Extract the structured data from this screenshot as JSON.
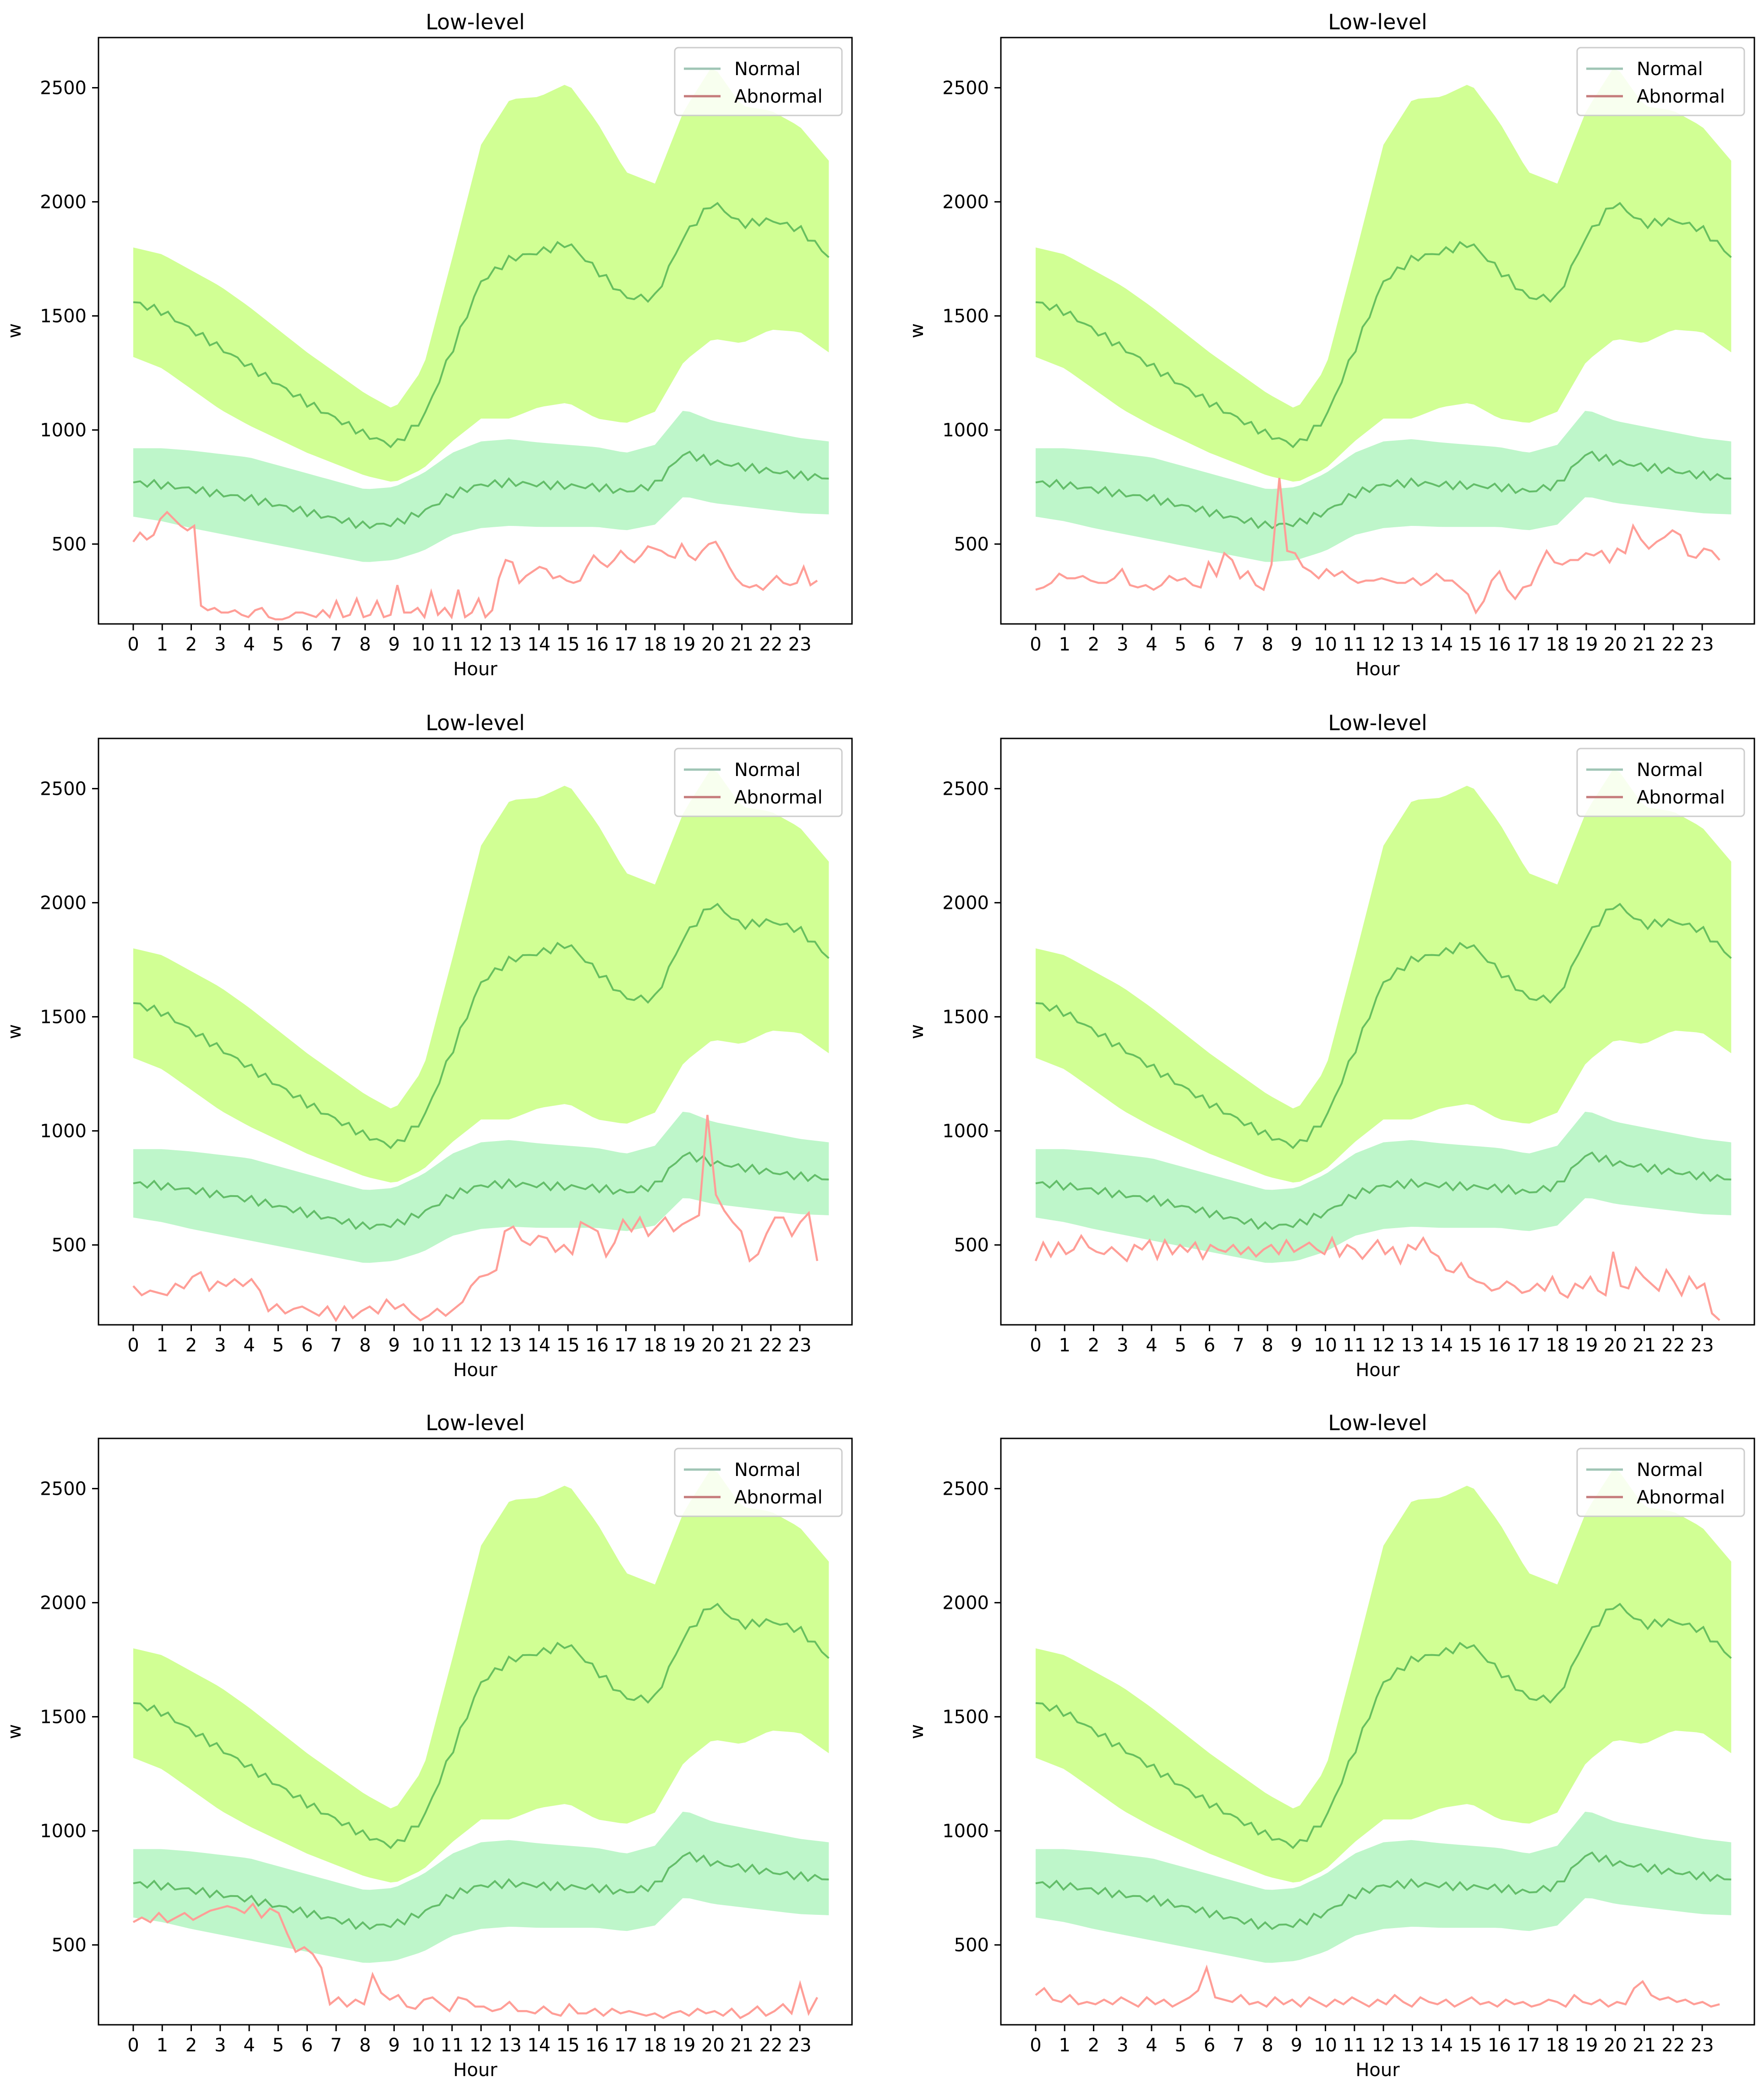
{
  "figure": {
    "panel_count": 6,
    "colors": {
      "upper_band": "#ccff88",
      "upper_mean": "#4caf50",
      "lower_band": "#b7f5c4",
      "lower_mean": "#4caf50",
      "abnormal": "#ff9e97",
      "legend_normal": "#9fc5b5",
      "legend_abnormal": "#c57b7b"
    }
  },
  "chart_data": [
    {
      "type": "line",
      "title": "Low-level",
      "xlabel": "Hour",
      "ylabel": "w",
      "legend": [
        "Normal",
        "Abnormal"
      ],
      "legend_position": "top-right",
      "ylim": [
        150,
        2720
      ],
      "xlim": [
        -1.2,
        24.8
      ],
      "xticks": [
        "0",
        "1",
        "2",
        "3",
        "4",
        "5",
        "6",
        "7",
        "8",
        "9",
        "10",
        "11",
        "12",
        "13",
        "14",
        "15",
        "16",
        "17",
        "18",
        "19",
        "20",
        "21",
        "22",
        "23"
      ],
      "yticks": [
        "500",
        "1000",
        "1500",
        "2000",
        "2500"
      ],
      "abnormal_y": [
        510,
        550,
        520,
        540,
        610,
        640,
        610,
        580,
        560,
        580,
        230,
        210,
        220,
        200,
        200,
        210,
        190,
        180,
        210,
        220,
        180,
        170,
        170,
        180,
        200,
        200,
        190,
        180,
        210,
        180,
        250,
        180,
        190,
        260,
        180,
        190,
        250,
        180,
        190,
        320,
        200,
        200,
        220,
        180,
        290,
        190,
        220,
        180,
        300,
        180,
        200,
        260,
        180,
        210,
        350,
        430,
        420,
        330,
        360,
        380,
        400,
        390,
        350,
        360,
        340,
        330,
        340,
        400,
        450,
        420,
        400,
        430,
        470,
        440,
        420,
        450,
        490,
        480,
        470,
        450,
        440,
        500,
        450,
        430,
        470,
        500,
        510,
        460,
        400,
        350,
        320,
        310,
        320,
        300,
        330,
        360,
        330,
        320,
        330,
        400,
        320,
        340
      ]
    },
    {
      "type": "line",
      "title": "Low-level",
      "xlabel": "Hour",
      "ylabel": "w",
      "legend": [
        "Normal",
        "Abnormal"
      ],
      "legend_position": "top-right",
      "ylim": [
        150,
        2720
      ],
      "xlim": [
        -1.2,
        24.8
      ],
      "xticks": [
        "0",
        "1",
        "2",
        "3",
        "4",
        "5",
        "6",
        "7",
        "8",
        "9",
        "10",
        "11",
        "12",
        "13",
        "14",
        "15",
        "16",
        "17",
        "18",
        "19",
        "20",
        "21",
        "22",
        "23"
      ],
      "yticks": [
        "500",
        "1000",
        "1500",
        "2000",
        "2500"
      ],
      "abnormal_y": [
        300,
        310,
        330,
        370,
        350,
        350,
        360,
        340,
        330,
        330,
        350,
        390,
        320,
        310,
        320,
        300,
        320,
        360,
        340,
        350,
        320,
        310,
        420,
        360,
        460,
        430,
        350,
        380,
        320,
        300,
        410,
        790,
        470,
        460,
        400,
        380,
        350,
        390,
        360,
        380,
        350,
        330,
        340,
        340,
        350,
        340,
        330,
        330,
        350,
        320,
        340,
        370,
        340,
        340,
        310,
        280,
        200,
        250,
        340,
        380,
        300,
        260,
        310,
        320,
        400,
        470,
        420,
        410,
        430,
        430,
        460,
        450,
        470,
        420,
        480,
        460,
        580,
        520,
        480,
        510,
        530,
        560,
        540,
        450,
        440,
        480,
        470,
        430
      ]
    },
    {
      "type": "line",
      "title": "Low-level",
      "xlabel": "Hour",
      "ylabel": "w",
      "legend": [
        "Normal",
        "Abnormal"
      ],
      "legend_position": "top-right",
      "ylim": [
        150,
        2720
      ],
      "xlim": [
        -1.2,
        24.8
      ],
      "xticks": [
        "0",
        "1",
        "2",
        "3",
        "4",
        "5",
        "6",
        "7",
        "8",
        "9",
        "10",
        "11",
        "12",
        "13",
        "14",
        "15",
        "16",
        "17",
        "18",
        "19",
        "20",
        "21",
        "22",
        "23"
      ],
      "yticks": [
        "500",
        "1000",
        "1500",
        "2000",
        "2500"
      ],
      "abnormal_y": [
        320,
        280,
        300,
        290,
        280,
        330,
        310,
        360,
        380,
        300,
        340,
        320,
        350,
        320,
        350,
        300,
        210,
        240,
        200,
        220,
        230,
        210,
        190,
        230,
        170,
        230,
        180,
        210,
        230,
        200,
        260,
        220,
        240,
        200,
        170,
        190,
        220,
        190,
        220,
        250,
        320,
        360,
        370,
        390,
        560,
        580,
        520,
        500,
        540,
        530,
        470,
        500,
        460,
        600,
        580,
        560,
        450,
        510,
        610,
        560,
        620,
        540,
        580,
        620,
        560,
        590,
        610,
        630,
        1070,
        720,
        650,
        600,
        560,
        430,
        460,
        550,
        620,
        620,
        540,
        600,
        640,
        430
      ]
    },
    {
      "type": "line",
      "title": "Low-level",
      "xlabel": "Hour",
      "ylabel": "w",
      "legend": [
        "Normal",
        "Abnormal"
      ],
      "legend_position": "top-right",
      "ylim": [
        150,
        2720
      ],
      "xlim": [
        -1.2,
        24.8
      ],
      "xticks": [
        "0",
        "1",
        "2",
        "3",
        "4",
        "5",
        "6",
        "7",
        "8",
        "9",
        "10",
        "11",
        "12",
        "13",
        "14",
        "15",
        "16",
        "17",
        "18",
        "19",
        "20",
        "21",
        "22",
        "23"
      ],
      "yticks": [
        "500",
        "1000",
        "1500",
        "2000",
        "2500"
      ],
      "abnormal_y": [
        430,
        510,
        450,
        510,
        460,
        480,
        540,
        490,
        470,
        460,
        490,
        460,
        430,
        500,
        480,
        520,
        440,
        520,
        460,
        500,
        470,
        510,
        440,
        500,
        480,
        470,
        500,
        460,
        490,
        450,
        480,
        500,
        460,
        520,
        470,
        490,
        510,
        480,
        460,
        530,
        450,
        500,
        480,
        440,
        480,
        520,
        460,
        490,
        420,
        500,
        480,
        530,
        470,
        450,
        390,
        380,
        420,
        360,
        340,
        330,
        300,
        310,
        340,
        320,
        290,
        300,
        330,
        300,
        360,
        290,
        270,
        330,
        310,
        360,
        300,
        280,
        470,
        320,
        310,
        400,
        360,
        330,
        300,
        390,
        340,
        280,
        360,
        310,
        330,
        200,
        170
      ]
    },
    {
      "type": "line",
      "title": "Low-level",
      "xlabel": "Hour",
      "ylabel": "w",
      "legend": [
        "Normal",
        "Abnormal"
      ],
      "legend_position": "top-right",
      "ylim": [
        150,
        2720
      ],
      "xlim": [
        -1.2,
        24.8
      ],
      "xticks": [
        "0",
        "1",
        "2",
        "3",
        "4",
        "5",
        "6",
        "7",
        "8",
        "9",
        "10",
        "11",
        "12",
        "13",
        "14",
        "15",
        "16",
        "17",
        "18",
        "19",
        "20",
        "21",
        "22",
        "23"
      ],
      "yticks": [
        "500",
        "1000",
        "1500",
        "2000",
        "2500"
      ],
      "abnormal_y": [
        600,
        620,
        600,
        640,
        600,
        620,
        640,
        610,
        630,
        650,
        660,
        670,
        660,
        640,
        680,
        620,
        660,
        640,
        550,
        470,
        490,
        460,
        400,
        240,
        270,
        230,
        260,
        240,
        370,
        290,
        260,
        280,
        230,
        220,
        260,
        270,
        240,
        210,
        270,
        260,
        230,
        230,
        210,
        220,
        250,
        210,
        210,
        200,
        230,
        200,
        190,
        240,
        200,
        200,
        220,
        190,
        220,
        200,
        210,
        200,
        190,
        200,
        180,
        200,
        210,
        190,
        220,
        200,
        210,
        190,
        220,
        180,
        200,
        230,
        190,
        210,
        240,
        200,
        330,
        200,
        270
      ]
    },
    {
      "type": "line",
      "title": "Low-level",
      "xlabel": "Hour",
      "ylabel": "w",
      "legend": [
        "Normal",
        "Abnormal"
      ],
      "legend_position": "top-right",
      "ylim": [
        150,
        2720
      ],
      "xlim": [
        -1.2,
        24.8
      ],
      "xticks": [
        "0",
        "1",
        "2",
        "3",
        "4",
        "5",
        "6",
        "7",
        "8",
        "9",
        "10",
        "11",
        "12",
        "13",
        "14",
        "15",
        "16",
        "17",
        "18",
        "19",
        "20",
        "21",
        "22",
        "23"
      ],
      "yticks": [
        "500",
        "1000",
        "1500",
        "2000",
        "2500"
      ],
      "abnormal_y": [
        280,
        310,
        260,
        250,
        280,
        240,
        250,
        240,
        260,
        240,
        270,
        250,
        230,
        270,
        240,
        260,
        230,
        250,
        270,
        300,
        400,
        270,
        260,
        250,
        280,
        240,
        250,
        230,
        270,
        240,
        260,
        230,
        270,
        250,
        230,
        260,
        240,
        270,
        250,
        230,
        260,
        240,
        280,
        250,
        230,
        270,
        250,
        240,
        260,
        230,
        250,
        270,
        240,
        250,
        230,
        260,
        240,
        250,
        230,
        240,
        260,
        250,
        230,
        280,
        250,
        240,
        260,
        230,
        250,
        240,
        310,
        340,
        280,
        260,
        270,
        250,
        260,
        240,
        250,
        230,
        240
      ]
    }
  ]
}
